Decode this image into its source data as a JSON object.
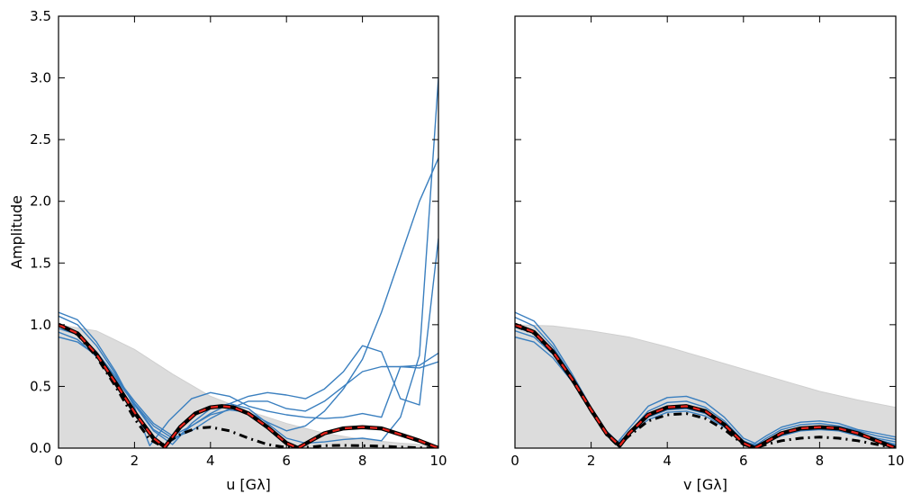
{
  "chart_data": [
    {
      "type": "line",
      "panel": "left",
      "xlabel": "u [Gλ]",
      "ylabel": "Amplitude",
      "xlim": [
        0,
        10
      ],
      "ylim": [
        0,
        3.5
      ],
      "xticks": [
        "0",
        "2",
        "4",
        "6",
        "8",
        "10"
      ],
      "yticks": [
        "0.0",
        "0.5",
        "1.0",
        "1.5",
        "2.0",
        "2.5",
        "3.0",
        "3.5"
      ],
      "grid": false,
      "legend": "none",
      "colors": {
        "band": "#dcdcdc",
        "sample": "#3a7fbf",
        "model": "#000000",
        "truth": "#e8231b",
        "dashdot": "#000000"
      },
      "band": {
        "x": [
          0,
          1,
          2,
          3,
          4,
          5,
          6,
          7,
          8,
          9,
          10
        ],
        "y": [
          1.0,
          0.95,
          0.8,
          0.6,
          0.42,
          0.3,
          0.2,
          0.12,
          0.07,
          0.04,
          0.02
        ]
      },
      "series": [
        {
          "style": "sample",
          "x": [
            0,
            0.5,
            1,
            1.5,
            2,
            2.4,
            2.9,
            3.5,
            4,
            4.5,
            5,
            5.5,
            6,
            6.5,
            7,
            7.5,
            8,
            8.5,
            9,
            9.5,
            10
          ],
          "y": [
            1.1,
            1.04,
            0.86,
            0.62,
            0.33,
            0.02,
            0.22,
            0.4,
            0.45,
            0.42,
            0.34,
            0.3,
            0.27,
            0.25,
            0.24,
            0.25,
            0.28,
            0.25,
            0.66,
            0.67,
            0.77
          ]
        },
        {
          "style": "sample",
          "x": [
            0,
            0.5,
            1,
            1.5,
            2,
            2.5,
            3,
            3.5,
            4,
            4.5,
            5,
            5.5,
            6,
            6.5,
            7,
            7.5,
            8,
            8.5,
            9,
            9.5,
            10
          ],
          "y": [
            1.07,
            1.0,
            0.83,
            0.6,
            0.35,
            0.14,
            0.03,
            0.2,
            0.32,
            0.36,
            0.32,
            0.2,
            0.08,
            0.04,
            0.05,
            0.07,
            0.08,
            0.06,
            0.25,
            0.75,
            3.0
          ]
        },
        {
          "style": "sample",
          "x": [
            0,
            0.5,
            1,
            1.5,
            2,
            2.5,
            3,
            3.5,
            4,
            4.5,
            5,
            5.5,
            6,
            6.5,
            7,
            7.5,
            8,
            8.5,
            9,
            9.5,
            10
          ],
          "y": [
            0.97,
            0.92,
            0.78,
            0.58,
            0.36,
            0.15,
            0.06,
            0.18,
            0.27,
            0.31,
            0.29,
            0.21,
            0.14,
            0.18,
            0.3,
            0.48,
            0.72,
            1.1,
            1.55,
            2.0,
            2.35
          ]
        },
        {
          "style": "sample",
          "x": [
            0,
            0.5,
            1,
            1.5,
            2,
            2.5,
            3,
            3.5,
            4,
            4.5,
            5,
            5.5,
            6,
            6.5,
            7,
            7.5,
            8,
            8.5,
            9,
            9.5,
            10
          ],
          "y": [
            0.94,
            0.88,
            0.74,
            0.56,
            0.36,
            0.18,
            0.08,
            0.14,
            0.24,
            0.32,
            0.38,
            0.38,
            0.32,
            0.3,
            0.38,
            0.5,
            0.62,
            0.66,
            0.66,
            0.65,
            0.7
          ]
        },
        {
          "style": "sample",
          "x": [
            0,
            0.5,
            1,
            1.5,
            2,
            2.5,
            3,
            3.5,
            4,
            4.5,
            5,
            5.5,
            6,
            6.5,
            7,
            7.5,
            8,
            8.5,
            9,
            9.5,
            10
          ],
          "y": [
            0.9,
            0.86,
            0.75,
            0.58,
            0.38,
            0.2,
            0.1,
            0.18,
            0.28,
            0.36,
            0.42,
            0.45,
            0.43,
            0.4,
            0.48,
            0.62,
            0.83,
            0.78,
            0.4,
            0.35,
            1.7
          ]
        },
        {
          "style": "dashdot",
          "x": [
            0,
            0.5,
            1,
            1.5,
            2,
            2.4,
            2.7,
            3.2,
            3.6,
            4,
            4.5,
            5,
            5.5,
            6,
            6.3,
            7,
            7.5,
            8,
            8.5,
            9,
            9.5,
            10
          ],
          "y": [
            1.0,
            0.92,
            0.74,
            0.5,
            0.24,
            0.07,
            0.02,
            0.11,
            0.16,
            0.17,
            0.14,
            0.08,
            0.03,
            0.005,
            0.0,
            0.02,
            0.022,
            0.02,
            0.015,
            0.008,
            0.003,
            0.0
          ]
        },
        {
          "style": "model",
          "x": [
            0,
            0.5,
            1,
            1.5,
            2,
            2.5,
            2.8,
            3.2,
            3.6,
            4,
            4.3,
            4.6,
            5,
            5.5,
            6,
            6.3,
            6.7,
            7,
            7.5,
            8,
            8.5,
            9,
            9.5,
            10
          ],
          "y": [
            1.0,
            0.93,
            0.76,
            0.53,
            0.29,
            0.08,
            0.01,
            0.17,
            0.28,
            0.33,
            0.34,
            0.33,
            0.28,
            0.17,
            0.04,
            0.0,
            0.07,
            0.12,
            0.16,
            0.17,
            0.16,
            0.11,
            0.06,
            0.0
          ]
        },
        {
          "style": "truth",
          "x": [
            0,
            0.5,
            1,
            1.5,
            2,
            2.5,
            2.8,
            3.2,
            3.6,
            4,
            4.3,
            4.6,
            5,
            5.5,
            6,
            6.3,
            6.7,
            7,
            7.5,
            8,
            8.5,
            9,
            9.5,
            10
          ],
          "y": [
            1.0,
            0.93,
            0.76,
            0.53,
            0.29,
            0.08,
            0.01,
            0.17,
            0.28,
            0.33,
            0.34,
            0.33,
            0.28,
            0.17,
            0.04,
            0.0,
            0.07,
            0.12,
            0.16,
            0.17,
            0.16,
            0.11,
            0.06,
            0.0
          ]
        }
      ]
    },
    {
      "type": "line",
      "panel": "right",
      "xlabel": "v [Gλ]",
      "ylabel": "",
      "xlim": [
        0,
        10
      ],
      "ylim": [
        0,
        3.5
      ],
      "xticks": [
        "0",
        "2",
        "4",
        "6",
        "8",
        "10"
      ],
      "yticks": [],
      "grid": false,
      "legend": "none",
      "colors": {
        "band": "#dcdcdc",
        "sample": "#3a7fbf",
        "model": "#000000",
        "truth": "#e8231b",
        "dashdot": "#000000"
      },
      "band": {
        "x": [
          0,
          1,
          2,
          3,
          4,
          5,
          6,
          7,
          8,
          9,
          10
        ],
        "y": [
          1.0,
          0.99,
          0.95,
          0.9,
          0.82,
          0.73,
          0.64,
          0.55,
          0.46,
          0.39,
          0.33
        ]
      },
      "series": [
        {
          "style": "sample",
          "x": [
            0,
            0.5,
            1,
            1.5,
            2,
            2.4,
            2.7,
            3,
            3.5,
            4,
            4.5,
            5,
            5.5,
            6,
            6.3,
            6.6,
            7,
            7.5,
            8,
            8.5,
            9,
            9.5,
            10
          ],
          "y": [
            1.1,
            1.03,
            0.85,
            0.6,
            0.33,
            0.14,
            0.05,
            0.16,
            0.34,
            0.41,
            0.42,
            0.37,
            0.25,
            0.08,
            0.04,
            0.1,
            0.17,
            0.21,
            0.22,
            0.2,
            0.15,
            0.12,
            0.09
          ]
        },
        {
          "style": "sample",
          "x": [
            0,
            0.5,
            1,
            1.5,
            2,
            2.4,
            2.7,
            3,
            3.5,
            4,
            4.5,
            5,
            5.5,
            6,
            6.3,
            6.6,
            7,
            7.5,
            8,
            8.5,
            9,
            9.5,
            10
          ],
          "y": [
            1.06,
            0.99,
            0.82,
            0.58,
            0.32,
            0.12,
            0.03,
            0.13,
            0.3,
            0.37,
            0.38,
            0.33,
            0.22,
            0.06,
            0.02,
            0.08,
            0.15,
            0.19,
            0.2,
            0.18,
            0.14,
            0.1,
            0.07
          ]
        },
        {
          "style": "sample",
          "x": [
            0,
            0.5,
            1,
            1.5,
            2,
            2.4,
            2.7,
            3,
            3.5,
            4,
            4.5,
            5,
            5.5,
            6,
            6.3,
            6.6,
            7,
            7.5,
            8,
            8.5,
            9,
            9.5,
            10
          ],
          "y": [
            0.98,
            0.93,
            0.78,
            0.56,
            0.31,
            0.12,
            0.03,
            0.12,
            0.27,
            0.33,
            0.34,
            0.3,
            0.2,
            0.05,
            0.01,
            0.06,
            0.13,
            0.16,
            0.17,
            0.16,
            0.12,
            0.08,
            0.05
          ]
        },
        {
          "style": "sample",
          "x": [
            0,
            0.5,
            1,
            1.5,
            2,
            2.4,
            2.7,
            3,
            3.5,
            4,
            4.5,
            5,
            5.5,
            6,
            6.3,
            6.6,
            7,
            7.5,
            8,
            8.5,
            9,
            9.5,
            10
          ],
          "y": [
            0.95,
            0.9,
            0.76,
            0.55,
            0.31,
            0.12,
            0.04,
            0.12,
            0.25,
            0.31,
            0.32,
            0.28,
            0.18,
            0.05,
            0.02,
            0.05,
            0.11,
            0.15,
            0.16,
            0.15,
            0.11,
            0.07,
            0.03
          ]
        },
        {
          "style": "sample",
          "x": [
            0,
            0.5,
            1,
            1.5,
            2,
            2.4,
            2.7,
            3,
            3.5,
            4,
            4.5,
            5,
            5.5,
            6,
            6.3,
            6.6,
            7,
            7.5,
            8,
            8.5,
            9,
            9.5,
            10
          ],
          "y": [
            0.9,
            0.86,
            0.73,
            0.54,
            0.31,
            0.13,
            0.05,
            0.11,
            0.23,
            0.29,
            0.3,
            0.26,
            0.17,
            0.05,
            0.03,
            0.05,
            0.1,
            0.14,
            0.15,
            0.14,
            0.1,
            0.06,
            0.02
          ]
        },
        {
          "style": "dashdot",
          "x": [
            0,
            0.5,
            1,
            1.5,
            2,
            2.4,
            2.7,
            3,
            3.5,
            4,
            4.5,
            5,
            5.5,
            6,
            6.3,
            6.6,
            7,
            7.5,
            8,
            8.5,
            9,
            9.5,
            10
          ],
          "y": [
            0.99,
            0.93,
            0.77,
            0.55,
            0.3,
            0.11,
            0.02,
            0.1,
            0.22,
            0.27,
            0.28,
            0.24,
            0.15,
            0.03,
            0.0,
            0.03,
            0.06,
            0.08,
            0.09,
            0.08,
            0.06,
            0.03,
            0.0
          ]
        },
        {
          "style": "model",
          "x": [
            0,
            0.5,
            1,
            1.5,
            2,
            2.4,
            2.75,
            3,
            3.5,
            4,
            4.5,
            5,
            5.5,
            6,
            6.3,
            6.6,
            7,
            7.5,
            8,
            8.5,
            9,
            9.5,
            10
          ],
          "y": [
            1.0,
            0.94,
            0.78,
            0.56,
            0.31,
            0.12,
            0.02,
            0.12,
            0.27,
            0.33,
            0.34,
            0.3,
            0.19,
            0.04,
            0.0,
            0.05,
            0.12,
            0.16,
            0.17,
            0.16,
            0.12,
            0.06,
            0.0
          ]
        },
        {
          "style": "truth",
          "x": [
            0,
            0.5,
            1,
            1.5,
            2,
            2.4,
            2.75,
            3,
            3.5,
            4,
            4.5,
            5,
            5.5,
            6,
            6.3,
            6.6,
            7,
            7.5,
            8,
            8.5,
            9,
            9.5,
            10
          ],
          "y": [
            1.0,
            0.94,
            0.78,
            0.56,
            0.31,
            0.12,
            0.02,
            0.12,
            0.27,
            0.33,
            0.34,
            0.3,
            0.19,
            0.04,
            0.0,
            0.05,
            0.12,
            0.16,
            0.17,
            0.16,
            0.12,
            0.06,
            0.0
          ]
        }
      ]
    }
  ]
}
